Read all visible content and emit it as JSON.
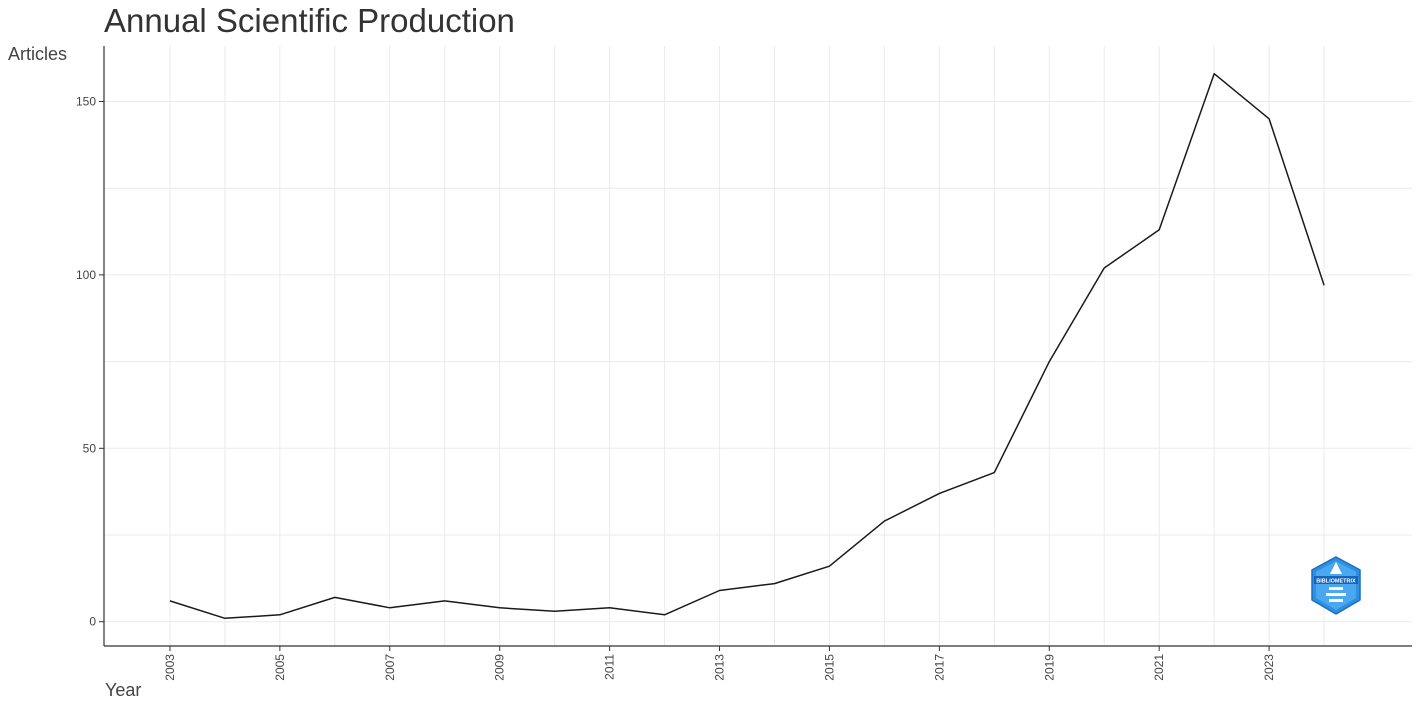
{
  "chart_data": {
    "type": "line",
    "title": "Annual Scientific Production",
    "xlabel": "Year",
    "ylabel": "Articles",
    "x": [
      2003,
      2004,
      2005,
      2006,
      2007,
      2008,
      2009,
      2010,
      2011,
      2012,
      2013,
      2014,
      2015,
      2016,
      2017,
      2018,
      2019,
      2020,
      2021,
      2022,
      2023,
      2024
    ],
    "series": [
      {
        "values": [
          6,
          1,
          2,
          7,
          4,
          6,
          4,
          3,
          4,
          2,
          9,
          11,
          16,
          29,
          37,
          43,
          75,
          102,
          113,
          158,
          145,
          97
        ]
      }
    ],
    "x_ticks": [
      "2003",
      "2005",
      "2007",
      "2009",
      "2011",
      "2013",
      "2015",
      "2017",
      "2019",
      "2021",
      "2023"
    ],
    "y_ticks": [
      "0",
      "50",
      "100",
      "150"
    ],
    "ylim": [
      -7,
      166
    ],
    "xlim": [
      2001.8,
      2025.6
    ],
    "grid": true,
    "line_color": "#1a1a1a",
    "grid_color": "#ebebeb"
  },
  "logo": {
    "icon": "bibliometrix-logo-icon",
    "text": "BIBLIOMETRIX",
    "color": "#2f8fe0"
  }
}
